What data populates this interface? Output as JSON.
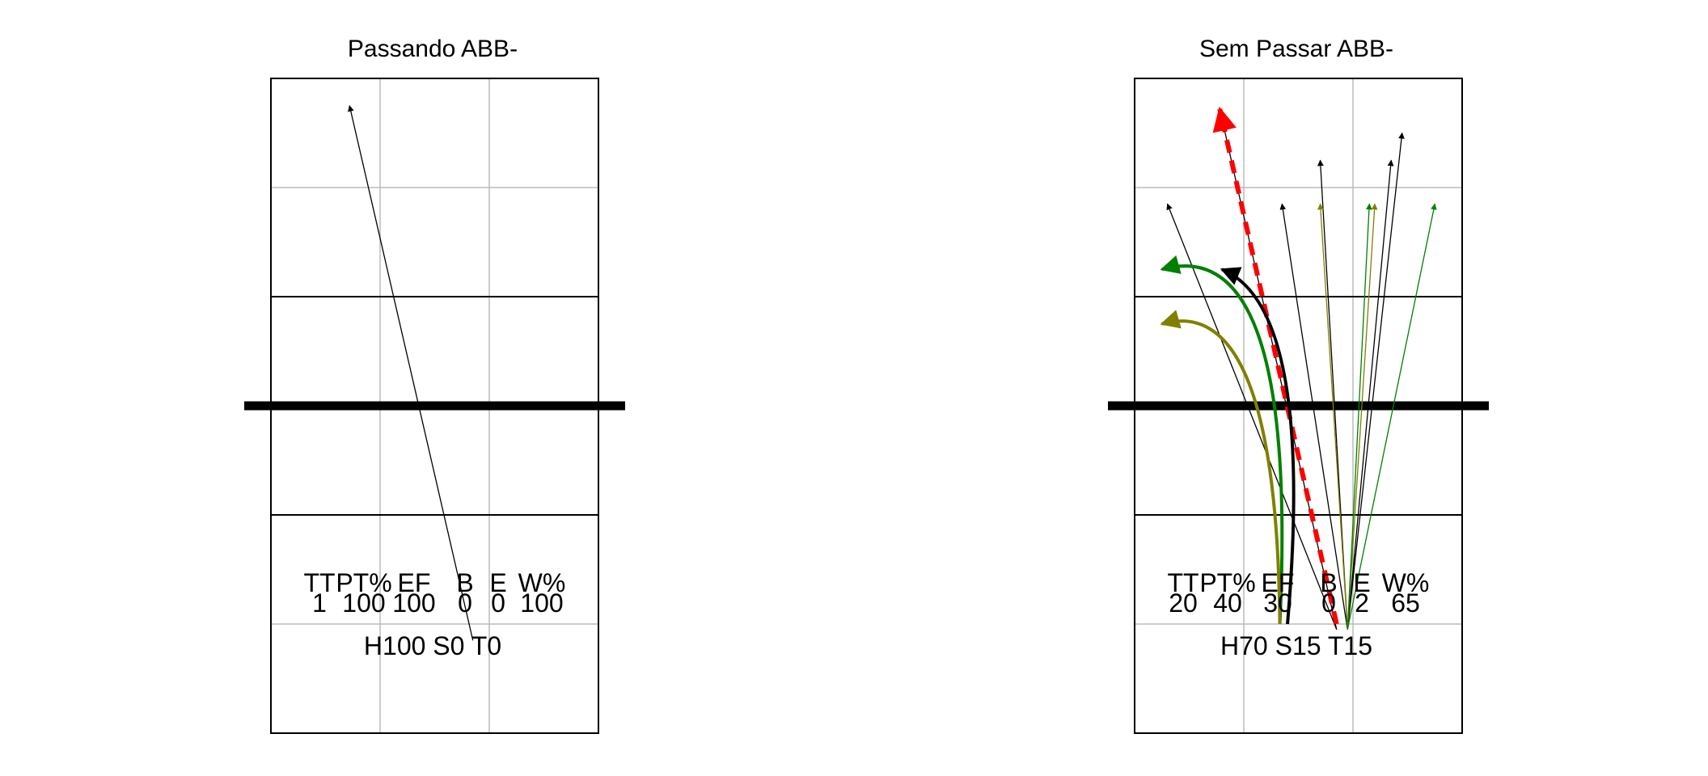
{
  "chart_data": [
    {
      "type": "court-attack-chart",
      "title": "Passando ABB-",
      "stats": {
        "headers": [
          "TT",
          "PT%",
          "EF",
          "B",
          "E",
          "W%"
        ],
        "values": [
          "1",
          "100",
          "100",
          "0",
          "0",
          "100"
        ]
      },
      "summary": "H100 S0 T0",
      "attacks": [
        {
          "from": [
            1.85,
            0.85
          ],
          "to": [
            0.72,
            5.75
          ],
          "color": "#000000",
          "style": "straight"
        }
      ]
    },
    {
      "type": "court-attack-chart",
      "title": "Sem Passar ABB-",
      "stats": {
        "headers": [
          "TT",
          "PT%",
          "EF",
          "B",
          "E",
          "W%"
        ],
        "values": [
          "20",
          "40",
          "30",
          "0",
          "2",
          "65"
        ]
      },
      "summary": "H70 S15 T15",
      "attacks": [
        {
          "from": [
            1.85,
            0.95
          ],
          "to": [
            0.3,
            4.85
          ],
          "color": "#000000",
          "style": "straight"
        },
        {
          "from": [
            1.85,
            0.95
          ],
          "to": [
            0.78,
            5.72
          ],
          "color": "#000000",
          "style": "straight"
        },
        {
          "from": [
            1.95,
            0.95
          ],
          "to": [
            1.35,
            4.85
          ],
          "color": "#000000",
          "style": "straight"
        },
        {
          "from": [
            1.95,
            0.95
          ],
          "to": [
            1.7,
            5.25
          ],
          "color": "#000000",
          "style": "straight"
        },
        {
          "from": [
            1.95,
            0.95
          ],
          "to": [
            2.35,
            5.25
          ],
          "color": "#000000",
          "style": "straight"
        },
        {
          "from": [
            1.95,
            0.95
          ],
          "to": [
            2.45,
            5.5
          ],
          "color": "#000000",
          "style": "straight"
        },
        {
          "from": [
            1.95,
            0.95
          ],
          "to": [
            2.2,
            4.85
          ],
          "color": "#808000",
          "style": "straight"
        },
        {
          "from": [
            1.95,
            0.95
          ],
          "to": [
            1.7,
            4.85
          ],
          "color": "#808000",
          "style": "straight"
        },
        {
          "from": [
            1.95,
            0.95
          ],
          "to": [
            2.15,
            4.85
          ],
          "color": "#008000",
          "style": "straight"
        },
        {
          "from": [
            1.95,
            0.95
          ],
          "to": [
            2.75,
            4.85
          ],
          "color": "#008000",
          "style": "straight"
        },
        {
          "from": [
            1.85,
            1.0
          ],
          "to": [
            0.78,
            5.72
          ],
          "color": "#ff0000",
          "style": "dashed"
        },
        {
          "from": [
            1.4,
            1.0
          ],
          "to": [
            0.8,
            4.25
          ],
          "color": "#000000",
          "style": "curve",
          "ctrl": [
            1.65,
            3.9
          ]
        },
        {
          "from": [
            1.33,
            1.0
          ],
          "to": [
            0.25,
            4.25
          ],
          "color": "#008000",
          "style": "curve",
          "ctrl": [
            1.5,
            4.6
          ]
        },
        {
          "from": [
            1.33,
            1.0
          ],
          "to": [
            0.25,
            3.75
          ],
          "color": "#808000",
          "style": "curve",
          "ctrl": [
            1.3,
            4.05
          ]
        }
      ]
    }
  ]
}
